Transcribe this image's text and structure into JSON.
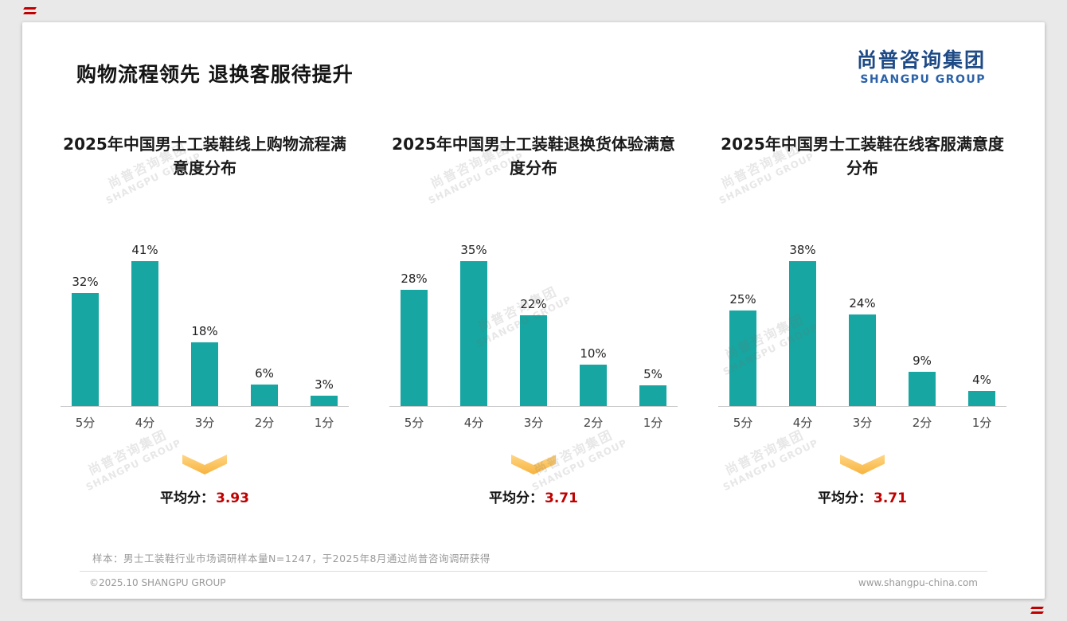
{
  "page": {
    "title": "购物流程领先 退换客服待提升",
    "logo_cn": "尚普咨询集团",
    "logo_en": "SHANGPU GROUP",
    "watermark_cn": "尚普咨询集团",
    "watermark_en": "SHANGPU GROUP",
    "sample_note": "样本：男士工装鞋行业市场调研样本量N=1247，于2025年8月通过尚普咨询调研获得",
    "footer_left": "©2025.10 SHANGPU GROUP",
    "footer_right": "www.shangpu-china.com"
  },
  "colors": {
    "bar": "#17a6a1",
    "accent_red": "#c00000",
    "logo_blue": "#1e4a86",
    "arrow_yellow": "#f7b33e"
  },
  "chart_data": [
    {
      "type": "bar",
      "title": "2025年中国男士工装鞋线上购物流程满意度分布",
      "categories": [
        "5分",
        "4分",
        "3分",
        "2分",
        "1分"
      ],
      "values": [
        32,
        41,
        18,
        6,
        3
      ],
      "unit": "%",
      "ylim": [
        0,
        45
      ],
      "average_label": "平均分：",
      "average": "3.93"
    },
    {
      "type": "bar",
      "title": "2025年中国男士工装鞋退换货体验满意度分布",
      "categories": [
        "5分",
        "4分",
        "3分",
        "2分",
        "1分"
      ],
      "values": [
        28,
        35,
        22,
        10,
        5
      ],
      "unit": "%",
      "ylim": [
        0,
        40
      ],
      "average_label": "平均分：",
      "average": "3.71"
    },
    {
      "type": "bar",
      "title": "2025年中国男士工装鞋在线客服满意度分布",
      "categories": [
        "5分",
        "4分",
        "3分",
        "2分",
        "1分"
      ],
      "values": [
        25,
        38,
        24,
        9,
        4
      ],
      "unit": "%",
      "ylim": [
        0,
        42
      ],
      "average_label": "平均分：",
      "average": "3.71"
    }
  ]
}
